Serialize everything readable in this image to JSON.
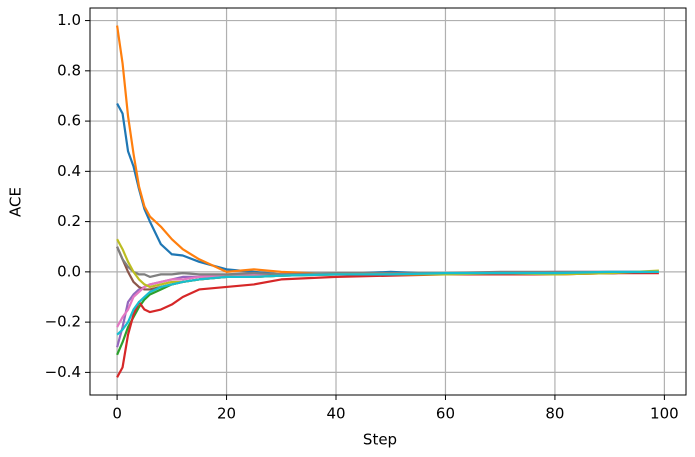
{
  "chart_data": {
    "type": "line",
    "x_label": "Step",
    "y_label": "ACE",
    "x": [
      0,
      1,
      2,
      3,
      4,
      5,
      6,
      8,
      10,
      12,
      15,
      20,
      25,
      30,
      40,
      50,
      60,
      70,
      80,
      90,
      99
    ],
    "series": [
      {
        "color": "#1f77b4",
        "values": [
          0.67,
          0.63,
          0.48,
          0.42,
          0.33,
          0.25,
          0.2,
          0.11,
          0.07,
          0.065,
          0.04,
          0.01,
          0.0,
          -0.01,
          -0.01,
          0.0,
          -0.01,
          -0.005,
          -0.005,
          -0.005,
          0.0
        ]
      },
      {
        "color": "#ff7f0e",
        "values": [
          0.98,
          0.83,
          0.62,
          0.47,
          0.34,
          0.26,
          0.22,
          0.18,
          0.13,
          0.09,
          0.05,
          0.0,
          0.01,
          0.0,
          -0.01,
          -0.005,
          -0.01,
          -0.005,
          -0.01,
          -0.005,
          0.0
        ]
      },
      {
        "color": "#2ca02c",
        "values": [
          -0.33,
          -0.28,
          -0.22,
          -0.18,
          -0.14,
          -0.11,
          -0.09,
          -0.07,
          -0.05,
          -0.04,
          -0.03,
          -0.02,
          -0.02,
          -0.015,
          -0.01,
          -0.01,
          -0.005,
          -0.01,
          -0.005,
          -0.005,
          0.0
        ]
      },
      {
        "color": "#d62728",
        "values": [
          -0.42,
          -0.38,
          -0.25,
          -0.17,
          -0.12,
          -0.15,
          -0.16,
          -0.15,
          -0.13,
          -0.1,
          -0.07,
          -0.06,
          -0.05,
          -0.03,
          -0.02,
          -0.015,
          -0.01,
          -0.01,
          -0.01,
          -0.005,
          -0.005
        ]
      },
      {
        "color": "#9467bd",
        "values": [
          -0.3,
          -0.22,
          -0.12,
          -0.09,
          -0.07,
          -0.06,
          -0.05,
          -0.04,
          -0.03,
          -0.02,
          -0.02,
          -0.015,
          -0.01,
          -0.01,
          -0.01,
          -0.005,
          -0.005,
          -0.005,
          -0.005,
          0.0,
          0.0
        ]
      },
      {
        "color": "#8c564b",
        "values": [
          0.1,
          0.05,
          0.0,
          -0.04,
          -0.06,
          -0.07,
          -0.07,
          -0.06,
          -0.05,
          -0.04,
          -0.03,
          -0.02,
          -0.02,
          -0.015,
          -0.01,
          -0.01,
          -0.005,
          -0.005,
          -0.005,
          -0.005,
          0.0
        ]
      },
      {
        "color": "#e377c2",
        "values": [
          -0.22,
          -0.18,
          -0.15,
          -0.1,
          -0.08,
          -0.06,
          -0.05,
          -0.04,
          -0.03,
          -0.03,
          -0.02,
          -0.015,
          -0.01,
          -0.01,
          -0.01,
          -0.005,
          -0.005,
          -0.005,
          0.0,
          0.0,
          0.0
        ]
      },
      {
        "color": "#7f7f7f",
        "values": [
          0.1,
          0.05,
          0.02,
          0.0,
          -0.01,
          -0.01,
          -0.02,
          -0.01,
          -0.01,
          -0.005,
          -0.01,
          -0.01,
          -0.005,
          -0.01,
          -0.005,
          -0.005,
          -0.005,
          0.0,
          0.0,
          0.0,
          0.0
        ]
      },
      {
        "color": "#bcbd22",
        "values": [
          0.13,
          0.09,
          0.04,
          0.0,
          -0.03,
          -0.05,
          -0.06,
          -0.05,
          -0.04,
          -0.04,
          -0.03,
          -0.02,
          -0.02,
          -0.015,
          -0.01,
          -0.01,
          -0.01,
          -0.005,
          -0.01,
          -0.005,
          0.005
        ]
      },
      {
        "color": "#17becf",
        "values": [
          -0.25,
          -0.23,
          -0.2,
          -0.15,
          -0.12,
          -0.1,
          -0.08,
          -0.06,
          -0.05,
          -0.04,
          -0.03,
          -0.02,
          -0.02,
          -0.015,
          -0.01,
          -0.01,
          -0.005,
          -0.005,
          -0.005,
          0.0,
          0.0
        ]
      }
    ],
    "xlim": [
      -4.95,
      103.95
    ],
    "ylim": [
      -0.49,
      1.05
    ],
    "xticks": [
      0,
      20,
      40,
      60,
      80,
      100
    ],
    "yticks": [
      {
        "value": -0.4,
        "label": "−0.4"
      },
      {
        "value": -0.2,
        "label": "−0.2"
      },
      {
        "value": 0,
        "label": "0.0"
      },
      {
        "value": 0.2,
        "label": "0.2"
      },
      {
        "value": 0.4,
        "label": "0.4"
      },
      {
        "value": 0.6,
        "label": "0.6"
      },
      {
        "value": 0.8,
        "label": "0.8"
      },
      {
        "value": 1,
        "label": "1.0"
      }
    ],
    "grid": true
  }
}
